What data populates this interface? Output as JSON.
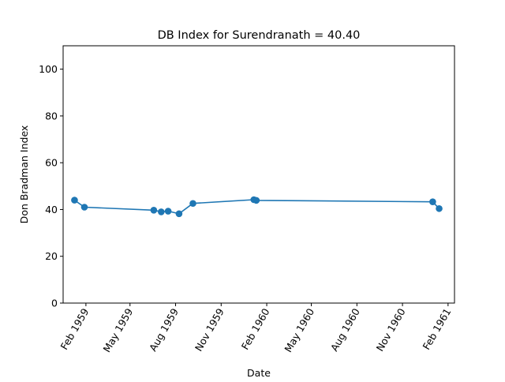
{
  "chart_data": {
    "type": "line",
    "title": "DB Index for Surendranath = 40.40",
    "xlabel": "Date",
    "ylabel": "Don Bradman Index",
    "ylim": [
      0,
      110
    ],
    "xlim": [
      "1958-12-17",
      "1961-02-14"
    ],
    "yticks": [
      0,
      20,
      40,
      60,
      80,
      100
    ],
    "xticks": [
      {
        "date": "1959-02-01",
        "label": "Feb 1959"
      },
      {
        "date": "1959-05-01",
        "label": "May 1959"
      },
      {
        "date": "1959-08-01",
        "label": "Aug 1959"
      },
      {
        "date": "1959-11-01",
        "label": "Nov 1959"
      },
      {
        "date": "1960-02-01",
        "label": "Feb 1960"
      },
      {
        "date": "1960-05-01",
        "label": "May 1960"
      },
      {
        "date": "1960-08-01",
        "label": "Aug 1960"
      },
      {
        "date": "1960-11-01",
        "label": "Nov 1960"
      },
      {
        "date": "1961-02-01",
        "label": "Feb 1961"
      }
    ],
    "grid": false,
    "color": "#1f77b4",
    "series": [
      {
        "x": [
          "1959-01-09",
          "1959-01-29",
          "1959-06-18",
          "1959-07-03",
          "1959-07-17",
          "1959-08-08",
          "1959-09-05",
          "1960-01-06",
          "1960-01-11",
          "1961-01-01",
          "1961-01-14"
        ],
        "y": [
          44.0,
          41.0,
          39.7,
          39.0,
          39.3,
          38.2,
          42.6,
          44.2,
          43.9,
          43.3,
          40.4
        ]
      }
    ]
  }
}
